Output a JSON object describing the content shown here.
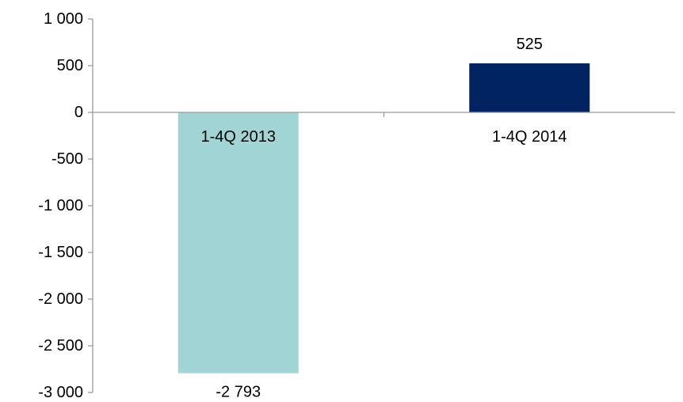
{
  "chart_data": {
    "type": "bar",
    "categories": [
      "1-4Q 2013",
      "1-4Q 2014"
    ],
    "values": [
      -2793,
      525
    ],
    "data_labels": [
      "-2 793",
      "525"
    ],
    "title": "",
    "xlabel": "",
    "ylabel": "",
    "ylim": [
      -3000,
      1000
    ],
    "yticks": [
      1000,
      500,
      0,
      -500,
      -1000,
      -1500,
      -2000,
      -2500,
      -3000
    ],
    "ytick_labels": [
      "1 000",
      "500",
      "0",
      "-500",
      "-1 000",
      "-1 500",
      "-2 000",
      "-2 500",
      "-3 000"
    ],
    "grid": false,
    "legend": "none",
    "colors": [
      "#a1d4d4",
      "#012361"
    ],
    "axis_color": "#9a9a9a"
  }
}
